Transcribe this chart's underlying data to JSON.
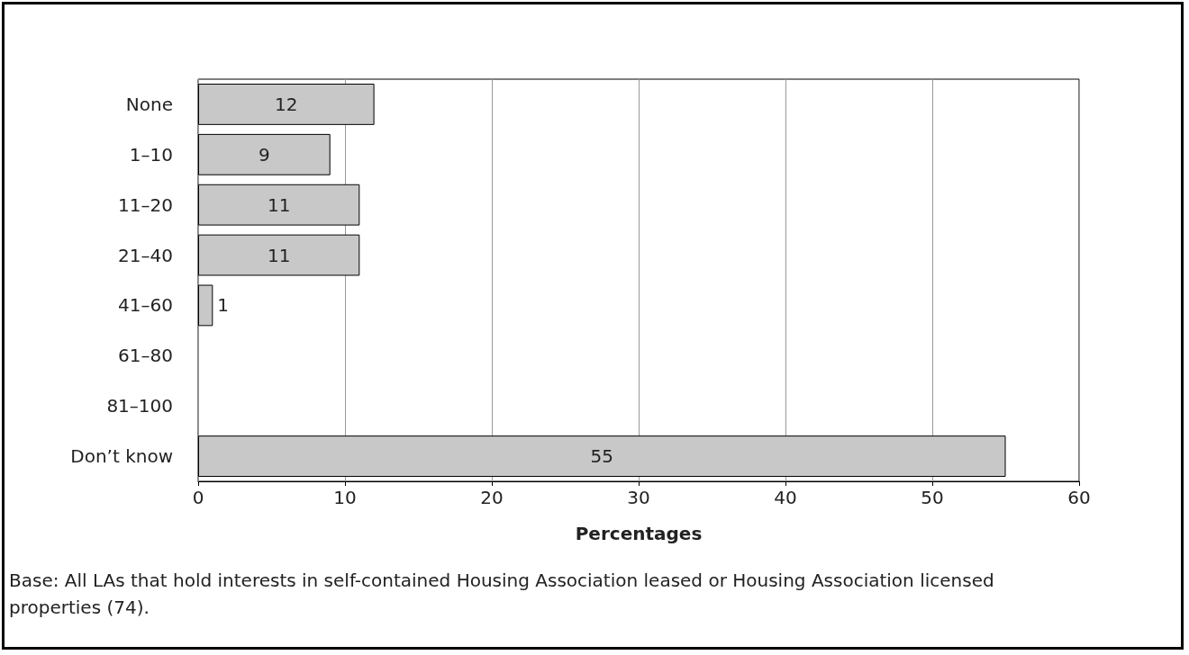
{
  "chart_data": {
    "type": "bar",
    "orientation": "horizontal",
    "categories": [
      "None",
      "1–10",
      "11–20",
      "21–40",
      "41–60",
      "61–80",
      "81–100",
      "Don’t know"
    ],
    "values": [
      12,
      9,
      11,
      11,
      1,
      0,
      0,
      55
    ],
    "value_labels": [
      "12",
      "9",
      "11",
      "11",
      "1",
      null,
      null,
      "55"
    ],
    "color": "#c8c8c8",
    "xlim": [
      0,
      60
    ],
    "xticks": [
      0,
      10,
      20,
      30,
      40,
      50,
      60
    ],
    "xlabel": "Percentages",
    "grid": "x",
    "annotations": [
      "Base: All LAs that hold interests in self-contained Housing Association leased or Housing Association licensed properties (74)."
    ]
  }
}
